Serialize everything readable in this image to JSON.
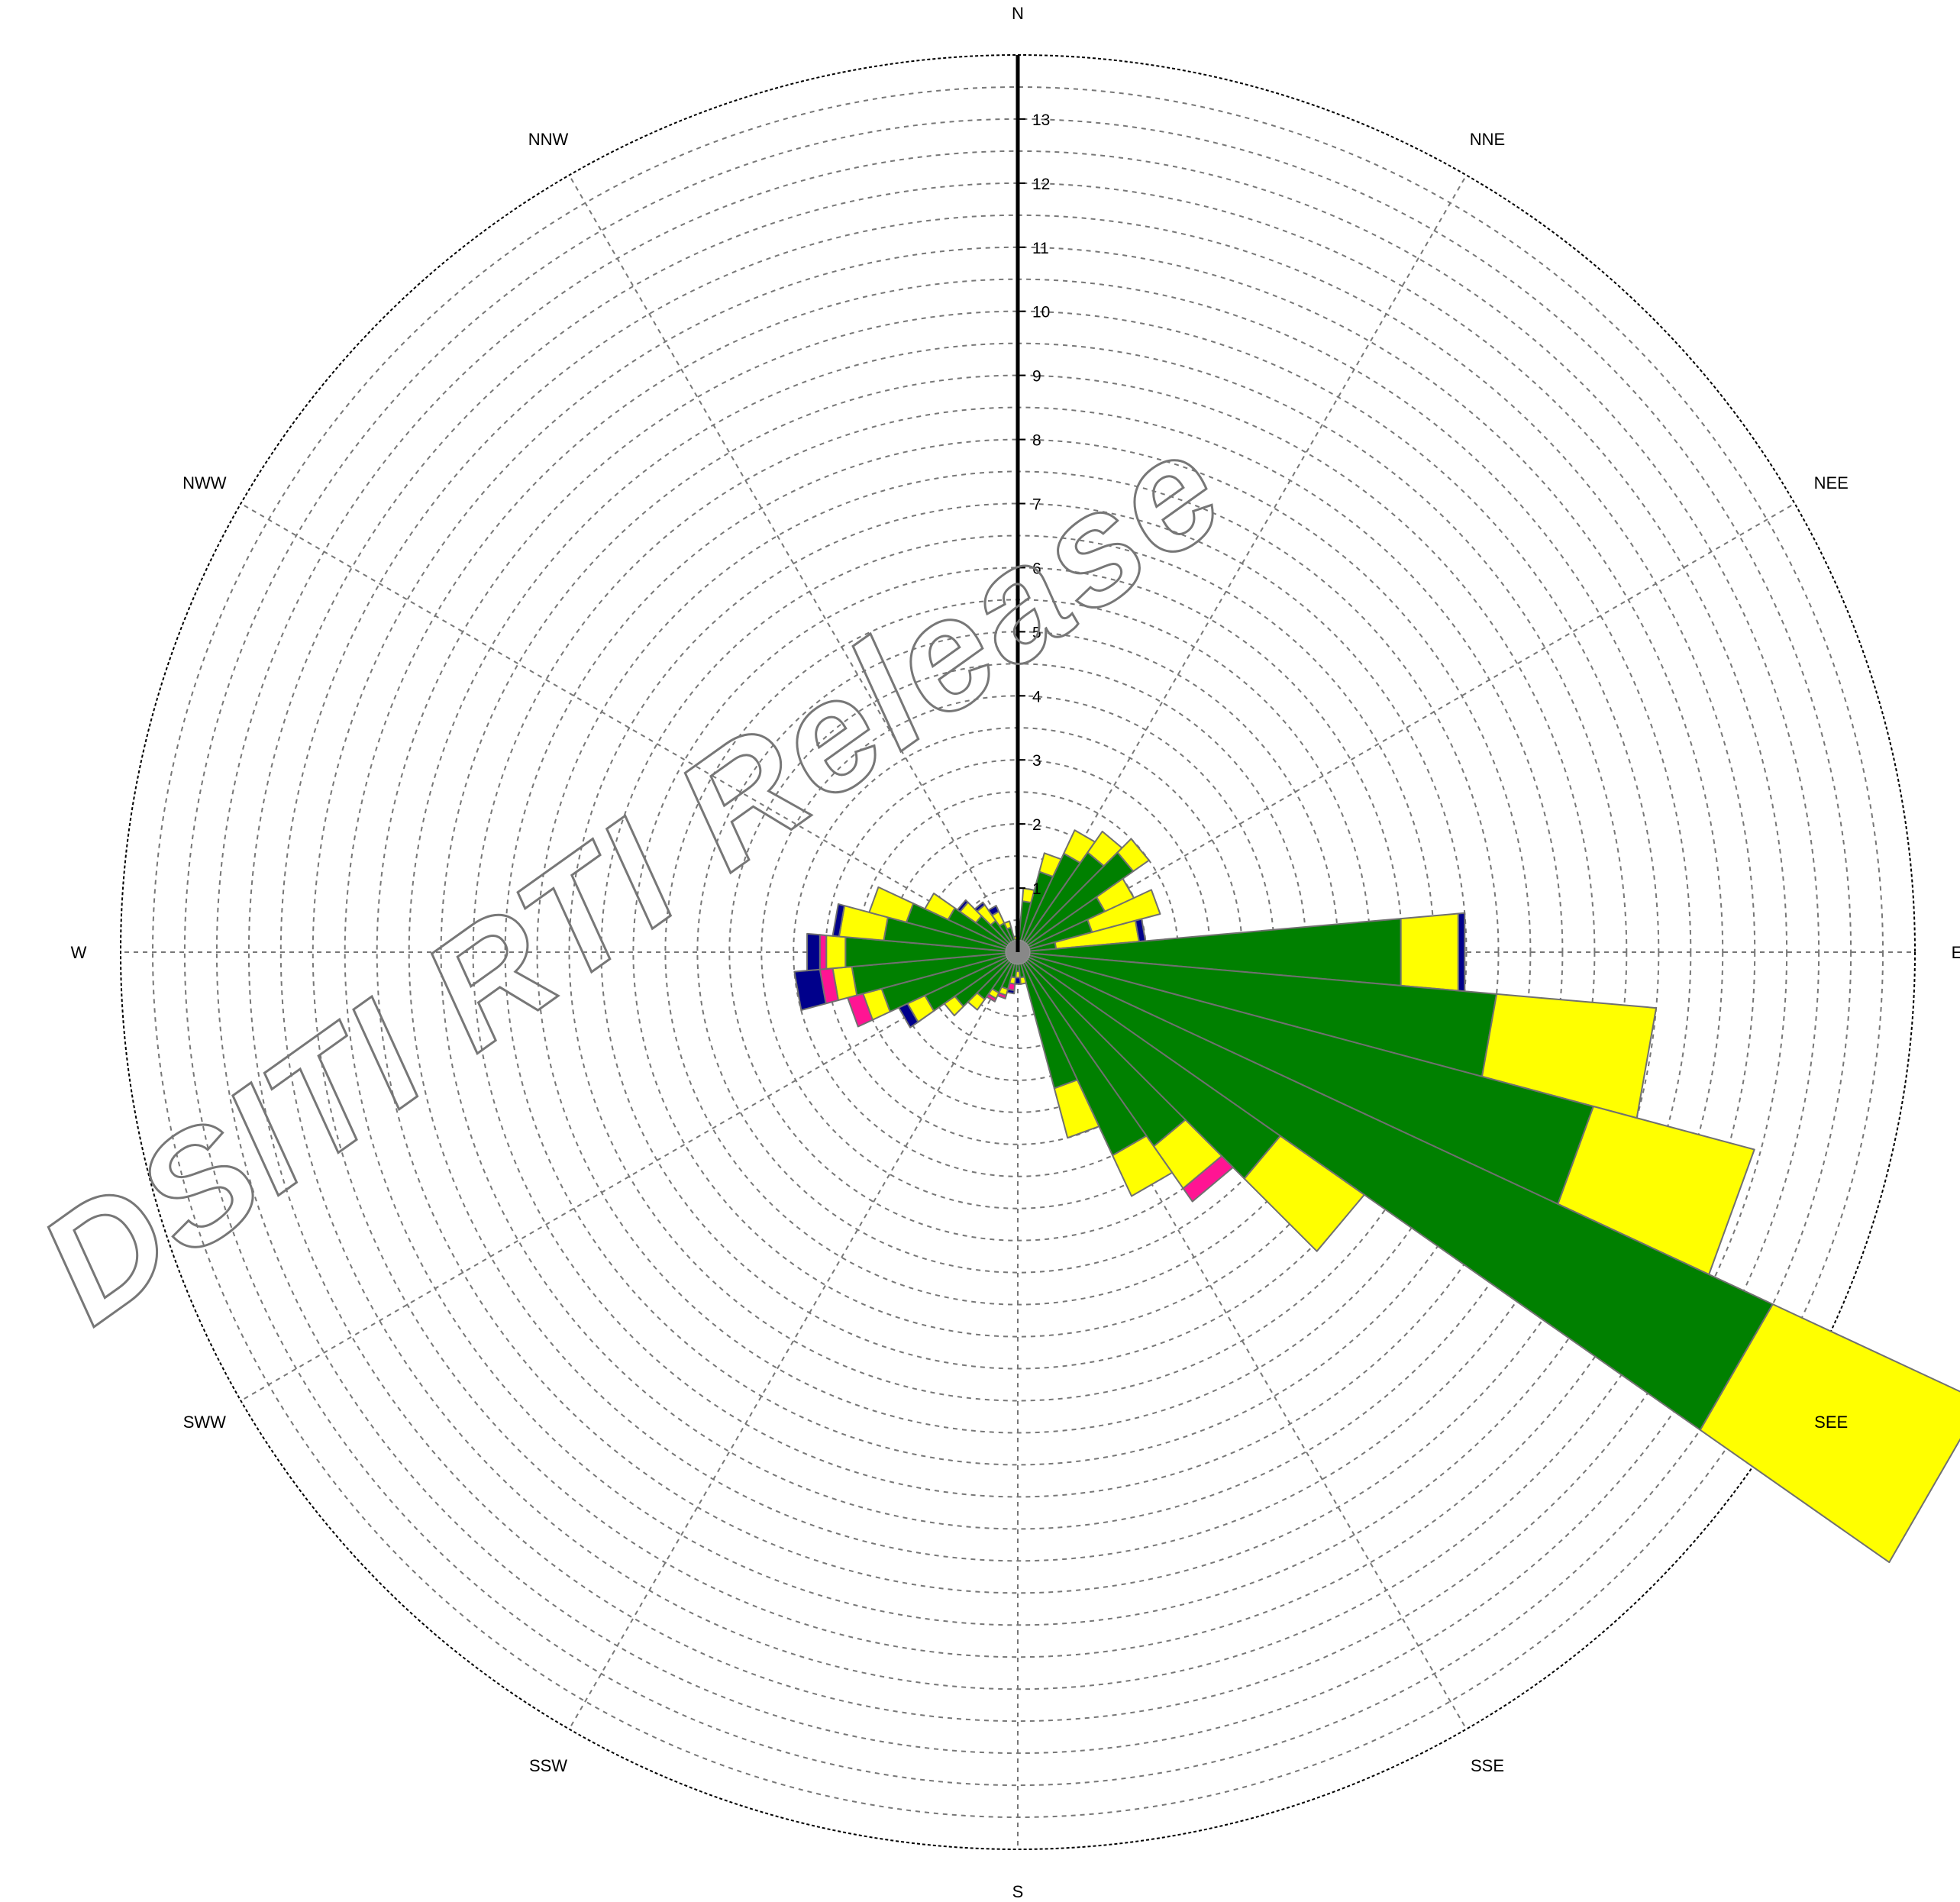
{
  "chart_data": {
    "type": "wind-rose",
    "direction_labels": [
      "N",
      "NNE",
      "NEE",
      "E",
      "SEE",
      "SSE",
      "S",
      "SSW",
      "SWW",
      "W",
      "NWW",
      "NNW"
    ],
    "radial_ticks": [
      "1",
      "2",
      "3",
      "4",
      "5",
      "6",
      "7",
      "8",
      "9",
      "10",
      "11",
      "12",
      "13"
    ],
    "rmax": 14,
    "grid": true,
    "sector_count": 36,
    "sector_width_deg": 10,
    "series": [
      {
        "color": "#008000",
        "values": [
          0.3,
          0.8,
          1.3,
          1.7,
          1.9,
          2.2,
          1.5,
          1.2,
          0.6,
          6.0,
          7.5,
          9.3,
          13.0,
          5.0,
          3.7,
          3.5,
          2.2,
          0.4,
          0.3,
          0.4,
          0.6,
          0.7,
          0.9,
          1.2,
          1.6,
          2.2,
          2.6,
          2.7,
          2.1,
          1.8,
          1.2,
          0.8,
          0.6,
          0.5,
          0.4,
          0.2
        ]
      },
      {
        "color": "#ffff00",
        "values": [
          0.1,
          0.2,
          0.3,
          0.4,
          0.4,
          0.3,
          0.5,
          1.1,
          1.3,
          0.9,
          2.5,
          2.6,
          3.6,
          1.6,
          0.8,
          0.7,
          0.8,
          0.1,
          0.1,
          0.1,
          0.1,
          0.1,
          0.2,
          0.2,
          0.3,
          0.3,
          0.3,
          0.3,
          0.7,
          0.6,
          0.4,
          0.3,
          0.3,
          0.2,
          0.1,
          0.05
        ]
      },
      {
        "color": "#ff1493",
        "values": [
          0,
          0,
          0,
          0,
          0,
          0,
          0,
          0,
          0,
          0,
          0,
          0,
          0,
          0,
          0.25,
          0,
          0,
          0,
          0,
          0.1,
          0.05,
          0.05,
          0,
          0,
          0,
          0.25,
          0.2,
          0.1,
          0,
          0,
          0,
          0,
          0,
          0,
          0,
          0
        ]
      },
      {
        "color": "#00008b",
        "values": [
          0,
          0,
          0,
          0,
          0,
          0,
          0,
          0,
          0.1,
          0.1,
          0,
          0,
          0,
          0,
          0,
          0,
          0,
          0,
          0.1,
          0.05,
          0,
          0,
          0,
          0,
          0.15,
          0,
          0.4,
          0.2,
          0.1,
          0,
          0,
          0.05,
          0.05,
          0.1,
          0,
          0
        ]
      }
    ],
    "watermark": "DSITI RTI Release",
    "colors": {
      "grid": "#777777",
      "bar_edge": "#707070",
      "axis": "#000000",
      "center": "#888888"
    }
  }
}
